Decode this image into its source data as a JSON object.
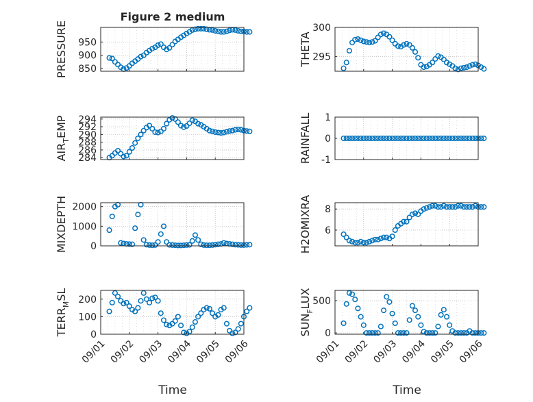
{
  "figure_title": "Figure 2 medium",
  "xlabel": "Time",
  "colors": {
    "marker": "#0072BD",
    "axis": "#262626",
    "grid": "#b0b0b0"
  },
  "x_ticks": [
    "09/01",
    "09/02",
    "09/03",
    "09/04",
    "09/05",
    "09/06"
  ],
  "chart_data": [
    {
      "type": "scatter",
      "ylabel": "PRESSURE",
      "title": "Figure 2 medium",
      "xlim": [
        "09/01",
        "09/06"
      ],
      "ylim": [
        840,
        1005
      ],
      "yticks": [
        850,
        900,
        950
      ],
      "grid": true,
      "marker": "open-circle",
      "x": [
        0.3,
        0.4,
        0.5,
        0.6,
        0.7,
        0.8,
        0.9,
        1.0,
        1.1,
        1.2,
        1.3,
        1.4,
        1.5,
        1.6,
        1.7,
        1.8,
        1.9,
        2.0,
        2.1,
        2.2,
        2.3,
        2.4,
        2.5,
        2.6,
        2.7,
        2.8,
        2.9,
        3.0,
        3.1,
        3.2,
        3.3,
        3.4,
        3.5,
        3.6,
        3.7,
        3.8,
        3.9,
        4.0,
        4.1,
        4.2,
        4.3,
        4.4,
        4.5,
        4.6,
        4.7,
        4.8,
        4.9,
        5.0,
        5.1,
        5.2
      ],
      "y": [
        890,
        888,
        875,
        865,
        855,
        848,
        852,
        860,
        870,
        878,
        886,
        895,
        900,
        910,
        918,
        925,
        930,
        938,
        942,
        930,
        922,
        928,
        940,
        952,
        960,
        968,
        975,
        982,
        988,
        995,
        998,
        1000,
        1000,
        1000,
        998,
        996,
        995,
        992,
        990,
        988,
        988,
        990,
        994,
        996,
        995,
        992,
        990,
        990,
        988,
        988
      ]
    },
    {
      "type": "scatter",
      "ylabel": "THETA",
      "xlim": [
        "09/01",
        "09/06"
      ],
      "ylim": [
        292.5,
        300
      ],
      "yticks": [
        295,
        300
      ],
      "grid": true,
      "marker": "open-circle",
      "x": [
        0.3,
        0.4,
        0.5,
        0.6,
        0.7,
        0.8,
        0.9,
        1.0,
        1.1,
        1.2,
        1.3,
        1.4,
        1.5,
        1.6,
        1.7,
        1.8,
        1.9,
        2.0,
        2.1,
        2.2,
        2.3,
        2.4,
        2.5,
        2.6,
        2.7,
        2.8,
        2.9,
        3.0,
        3.1,
        3.2,
        3.3,
        3.4,
        3.5,
        3.6,
        3.7,
        3.8,
        3.9,
        4.0,
        4.1,
        4.2,
        4.3,
        4.4,
        4.5,
        4.6,
        4.7,
        4.8,
        4.9,
        5.0,
        5.1,
        5.2
      ],
      "y": [
        293.0,
        294.0,
        296.0,
        297.4,
        297.9,
        298.0,
        297.8,
        297.6,
        297.5,
        297.4,
        297.5,
        297.7,
        298.3,
        298.8,
        299.0,
        298.8,
        298.4,
        297.8,
        297.2,
        296.8,
        296.7,
        297.0,
        297.2,
        297.0,
        296.5,
        295.8,
        294.8,
        293.6,
        293.2,
        293.3,
        293.6,
        294.0,
        294.6,
        295.1,
        294.9,
        294.5,
        294.0,
        293.7,
        293.4,
        293.0,
        292.8,
        293.0,
        293.1,
        293.2,
        293.4,
        293.6,
        293.7,
        293.5,
        293.2,
        292.9
      ]
    },
    {
      "type": "scatter",
      "ylabel": "AIR_TEMP",
      "ylabel_display": [
        "AIR",
        "T",
        "EMP"
      ],
      "xlim": [
        "09/01",
        "09/06"
      ],
      "ylim": [
        283.5,
        294.5
      ],
      "yticks": [
        284,
        286,
        288,
        290,
        292,
        294
      ],
      "grid": true,
      "marker": "open-circle",
      "x": [
        0.3,
        0.4,
        0.5,
        0.6,
        0.7,
        0.8,
        0.9,
        1.0,
        1.1,
        1.2,
        1.3,
        1.4,
        1.5,
        1.6,
        1.7,
        1.8,
        1.9,
        2.0,
        2.1,
        2.2,
        2.3,
        2.4,
        2.5,
        2.6,
        2.7,
        2.8,
        2.9,
        3.0,
        3.1,
        3.2,
        3.3,
        3.4,
        3.5,
        3.6,
        3.7,
        3.8,
        3.9,
        4.0,
        4.1,
        4.2,
        4.3,
        4.4,
        4.5,
        4.6,
        4.7,
        4.8,
        4.9,
        5.0,
        5.1,
        5.2
      ],
      "y": [
        284.0,
        284.5,
        285.2,
        285.8,
        285.0,
        284.3,
        284.5,
        285.5,
        286.5,
        287.8,
        289.0,
        290.0,
        291.0,
        291.8,
        292.3,
        291.5,
        290.6,
        290.5,
        290.8,
        291.5,
        292.8,
        293.8,
        294.3,
        294.0,
        293.2,
        292.3,
        291.9,
        292.2,
        292.9,
        293.7,
        293.4,
        292.8,
        292.5,
        292.0,
        291.5,
        291.0,
        290.8,
        290.6,
        290.5,
        290.4,
        290.5,
        290.7,
        290.9,
        291.0,
        291.2,
        291.3,
        291.2,
        291.0,
        290.9,
        290.8
      ]
    },
    {
      "type": "scatter",
      "ylabel": "RAINFALL",
      "xlim": [
        "09/01",
        "09/06"
      ],
      "ylim": [
        -1,
        1
      ],
      "yticks": [
        -1,
        0,
        1
      ],
      "grid": true,
      "marker": "open-circle",
      "x": [
        0.3,
        0.4,
        0.5,
        0.6,
        0.7,
        0.8,
        0.9,
        1.0,
        1.1,
        1.2,
        1.3,
        1.4,
        1.5,
        1.6,
        1.7,
        1.8,
        1.9,
        2.0,
        2.1,
        2.2,
        2.3,
        2.4,
        2.5,
        2.6,
        2.7,
        2.8,
        2.9,
        3.0,
        3.1,
        3.2,
        3.3,
        3.4,
        3.5,
        3.6,
        3.7,
        3.8,
        3.9,
        4.0,
        4.1,
        4.2,
        4.3,
        4.4,
        4.5,
        4.6,
        4.7,
        4.8,
        4.9,
        5.0,
        5.1,
        5.2
      ],
      "y": [
        0,
        0,
        0,
        0,
        0,
        0,
        0,
        0,
        0,
        0,
        0,
        0,
        0,
        0,
        0,
        0,
        0,
        0,
        0,
        0,
        0,
        0,
        0,
        0,
        0,
        0,
        0,
        0,
        0,
        0,
        0,
        0,
        0,
        0,
        0,
        0,
        0,
        0,
        0,
        0,
        0,
        0,
        0,
        0,
        0,
        0,
        0,
        0,
        0,
        0
      ]
    },
    {
      "type": "scatter",
      "ylabel": "MIXDEPTH",
      "xlim": [
        "09/01",
        "09/06"
      ],
      "ylim": [
        0,
        2200
      ],
      "yticks": [
        0,
        1000,
        2000
      ],
      "grid": true,
      "marker": "open-circle",
      "x": [
        0.3,
        0.4,
        0.5,
        0.6,
        0.7,
        0.8,
        0.9,
        1.0,
        1.1,
        1.2,
        1.3,
        1.4,
        1.5,
        1.6,
        1.7,
        1.8,
        1.9,
        2.0,
        2.1,
        2.2,
        2.3,
        2.4,
        2.5,
        2.6,
        2.7,
        2.8,
        2.9,
        3.0,
        3.1,
        3.2,
        3.3,
        3.4,
        3.5,
        3.6,
        3.7,
        3.8,
        3.9,
        4.0,
        4.1,
        4.2,
        4.3,
        4.4,
        4.5,
        4.6,
        4.7,
        4.8,
        4.9,
        5.0,
        5.1,
        5.2
      ],
      "y": [
        800,
        1500,
        2000,
        2100,
        150,
        120,
        100,
        90,
        80,
        900,
        1600,
        2100,
        300,
        60,
        40,
        30,
        40,
        200,
        600,
        1000,
        200,
        50,
        40,
        30,
        20,
        20,
        30,
        40,
        50,
        250,
        550,
        300,
        80,
        40,
        30,
        30,
        40,
        60,
        80,
        100,
        150,
        120,
        100,
        80,
        60,
        50,
        40,
        40,
        50,
        60
      ]
    },
    {
      "type": "scatter",
      "ylabel": "H2OMIXRA",
      "xlim": [
        "09/01",
        "09/06"
      ],
      "ylim": [
        4.5,
        8.6
      ],
      "yticks": [
        6,
        8
      ],
      "grid": true,
      "marker": "open-circle",
      "x": [
        0.3,
        0.4,
        0.5,
        0.6,
        0.7,
        0.8,
        0.9,
        1.0,
        1.1,
        1.2,
        1.3,
        1.4,
        1.5,
        1.6,
        1.7,
        1.8,
        1.9,
        2.0,
        2.1,
        2.2,
        2.3,
        2.4,
        2.5,
        2.6,
        2.7,
        2.8,
        2.9,
        3.0,
        3.1,
        3.2,
        3.3,
        3.4,
        3.5,
        3.6,
        3.7,
        3.8,
        3.9,
        4.0,
        4.1,
        4.2,
        4.3,
        4.4,
        4.5,
        4.6,
        4.7,
        4.8,
        4.9,
        5.0,
        5.1,
        5.2
      ],
      "y": [
        5.6,
        5.3,
        5.0,
        4.9,
        4.8,
        4.8,
        4.9,
        4.8,
        4.8,
        4.9,
        5.0,
        5.1,
        5.1,
        5.2,
        5.3,
        5.3,
        5.2,
        5.4,
        6.0,
        6.4,
        6.6,
        6.8,
        6.8,
        7.2,
        7.5,
        7.6,
        7.5,
        7.8,
        8.0,
        8.1,
        8.2,
        8.3,
        8.3,
        8.2,
        8.2,
        8.3,
        8.2,
        8.2,
        8.2,
        8.2,
        8.3,
        8.3,
        8.2,
        8.2,
        8.2,
        8.2,
        8.3,
        8.2,
        8.2,
        8.2
      ]
    },
    {
      "type": "scatter",
      "ylabel": "TERR_MSL",
      "ylabel_display": [
        "TERR",
        "M",
        "SL"
      ],
      "xlim": [
        "09/01",
        "09/06"
      ],
      "ylim": [
        0,
        250
      ],
      "yticks": [
        0,
        100,
        200
      ],
      "grid": true,
      "marker": "open-circle",
      "x": [
        0.3,
        0.4,
        0.5,
        0.6,
        0.7,
        0.8,
        0.9,
        1.0,
        1.1,
        1.2,
        1.3,
        1.4,
        1.5,
        1.6,
        1.7,
        1.8,
        1.9,
        2.0,
        2.1,
        2.2,
        2.3,
        2.4,
        2.5,
        2.6,
        2.7,
        2.8,
        2.9,
        3.0,
        3.1,
        3.2,
        3.3,
        3.4,
        3.5,
        3.6,
        3.7,
        3.8,
        3.9,
        4.0,
        4.1,
        4.2,
        4.3,
        4.4,
        4.5,
        4.6,
        4.7,
        4.8,
        4.9,
        5.0,
        5.1,
        5.2
      ],
      "y": [
        130,
        180,
        235,
        215,
        190,
        175,
        180,
        160,
        140,
        130,
        150,
        190,
        235,
        200,
        180,
        205,
        210,
        190,
        120,
        80,
        55,
        50,
        60,
        75,
        100,
        50,
        10,
        5,
        15,
        40,
        70,
        100,
        120,
        140,
        150,
        145,
        120,
        100,
        110,
        140,
        150,
        60,
        20,
        5,
        10,
        30,
        60,
        100,
        130,
        150
      ]
    },
    {
      "type": "scatter",
      "ylabel": "SUN_FLUX",
      "ylabel_display": [
        "SUN",
        "F",
        "LUX"
      ],
      "xlim": [
        "09/01",
        "09/06"
      ],
      "ylim": [
        -20,
        660
      ],
      "yticks": [
        0,
        500
      ],
      "grid": true,
      "marker": "open-circle",
      "x": [
        0.3,
        0.4,
        0.5,
        0.6,
        0.7,
        0.8,
        0.9,
        1.0,
        1.1,
        1.2,
        1.3,
        1.4,
        1.5,
        1.6,
        1.7,
        1.8,
        1.9,
        2.0,
        2.1,
        2.2,
        2.3,
        2.4,
        2.5,
        2.6,
        2.7,
        2.8,
        2.9,
        3.0,
        3.1,
        3.2,
        3.3,
        3.4,
        3.5,
        3.6,
        3.7,
        3.8,
        3.9,
        4.0,
        4.1,
        4.2,
        4.3,
        4.4,
        4.5,
        4.6,
        4.7,
        4.8,
        4.9,
        5.0,
        5.1,
        5.2
      ],
      "y": [
        150,
        450,
        620,
        600,
        520,
        380,
        250,
        120,
        0,
        0,
        0,
        0,
        0,
        100,
        350,
        560,
        480,
        300,
        150,
        0,
        0,
        0,
        0,
        200,
        420,
        350,
        250,
        120,
        20,
        0,
        0,
        0,
        0,
        100,
        280,
        360,
        250,
        120,
        30,
        0,
        0,
        0,
        0,
        0,
        30,
        0,
        0,
        0,
        0,
        0
      ]
    }
  ]
}
